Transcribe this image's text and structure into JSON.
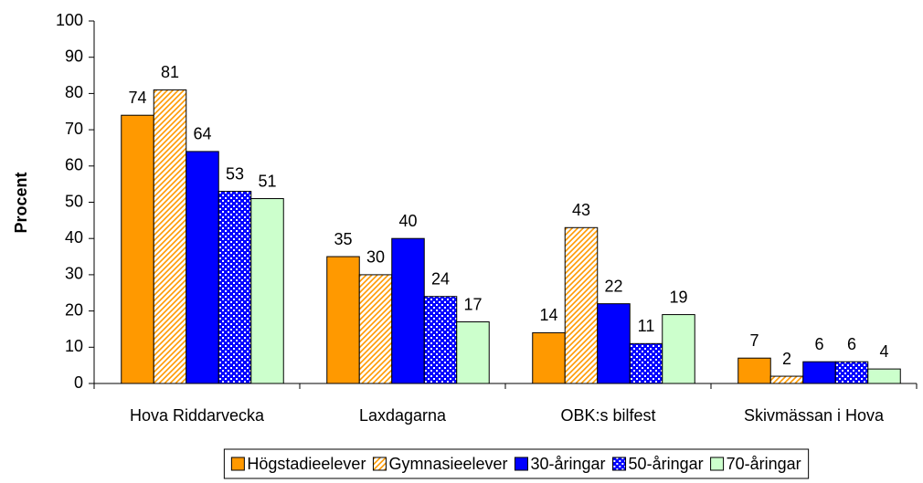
{
  "chart_data": {
    "type": "bar",
    "y_label": "Procent",
    "categories": [
      "Hova Riddarvecka",
      "Laxdagarna",
      "OBK:s bilfest",
      "Skivmässan i Hova"
    ],
    "series": [
      {
        "name": "Högstadieelever",
        "color": "#ff9900",
        "pattern": "solid",
        "values": [
          74,
          35,
          14,
          7
        ]
      },
      {
        "name": "Gymnasieelever",
        "color": "#ff9900",
        "pattern": "diagonal",
        "values": [
          81,
          30,
          43,
          2
        ]
      },
      {
        "name": "30-åringar",
        "color": "#0000ff",
        "pattern": "solid",
        "values": [
          64,
          40,
          22,
          6
        ]
      },
      {
        "name": "50-åringar",
        "color": "#0000ff",
        "pattern": "checker",
        "values": [
          53,
          24,
          11,
          6
        ]
      },
      {
        "name": "70-åringar",
        "color": "#ccffcc",
        "pattern": "solid",
        "values": [
          51,
          17,
          19,
          4
        ]
      }
    ],
    "ylim": [
      0,
      100
    ],
    "yticks": [
      0,
      10,
      20,
      30,
      40,
      50,
      60,
      70,
      80,
      90,
      100
    ],
    "grid": false,
    "legend": "bottom"
  }
}
